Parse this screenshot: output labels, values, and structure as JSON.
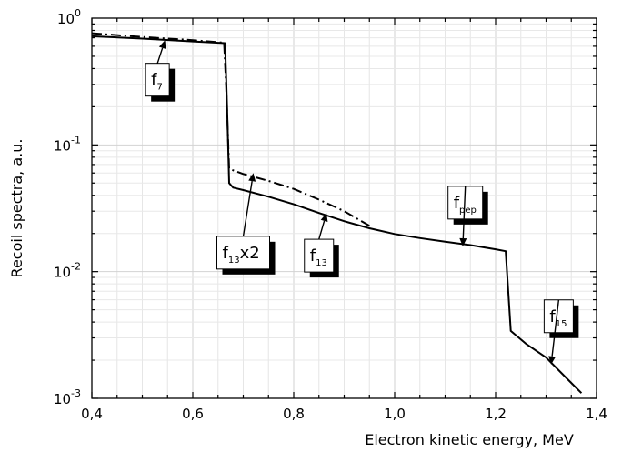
{
  "chart_data": {
    "type": "line",
    "xlabel": "Electron kinetic energy, MeV",
    "ylabel": "Recoil spectra, a.u.",
    "xlim": [
      0.4,
      1.4
    ],
    "ylim": [
      0.001,
      1
    ],
    "yscale": "log",
    "grid": true,
    "x_ticks": [
      "0,4",
      "0,6",
      "0,8",
      "1,0",
      "1,2",
      "1,4"
    ],
    "y_ticks": [
      {
        "base": "10",
        "exp": "-3"
      },
      {
        "base": "10",
        "exp": "-2"
      },
      {
        "base": "10",
        "exp": "-1"
      },
      {
        "base": "10",
        "exp": "0"
      }
    ],
    "series": [
      {
        "style": "solid",
        "x": [
          0.4,
          0.5,
          0.6,
          0.664,
          0.668,
          0.672,
          0.68,
          0.7,
          0.75,
          0.8,
          0.85,
          0.9,
          0.95,
          1.0,
          1.05,
          1.1,
          1.15,
          1.2,
          1.22,
          1.23,
          1.26,
          1.3,
          1.34,
          1.37
        ],
        "y": [
          0.72,
          0.69,
          0.655,
          0.635,
          0.2,
          0.05,
          0.046,
          0.044,
          0.039,
          0.034,
          0.029,
          0.025,
          0.022,
          0.0198,
          0.0184,
          0.0172,
          0.0162,
          0.015,
          0.0145,
          0.0034,
          0.0027,
          0.0021,
          0.00145,
          0.0011
        ]
      },
      {
        "style": "dashdot",
        "x": [
          0.4,
          0.5,
          0.6,
          0.662,
          0.666,
          0.672,
          0.68,
          0.7,
          0.75,
          0.8,
          0.85,
          0.9,
          0.95
        ],
        "y": [
          0.76,
          0.71,
          0.67,
          0.64,
          0.3,
          0.065,
          0.063,
          0.059,
          0.052,
          0.045,
          0.037,
          0.03,
          0.023
        ]
      }
    ],
    "annotations": [
      {
        "label": "f",
        "sub": "7",
        "tail": [
          0.53,
          0.44
        ],
        "head": [
          0.545,
          0.67
        ]
      },
      {
        "label": "f",
        "sub": "13",
        "suffix": "x2",
        "tail": [
          0.7,
          0.019
        ],
        "head": [
          0.72,
          0.06
        ]
      },
      {
        "label": "f",
        "sub": "13",
        "tail": [
          0.85,
          0.018
        ],
        "head": [
          0.865,
          0.029
        ]
      },
      {
        "label": "f",
        "sub": "pep",
        "tail": [
          1.14,
          0.026
        ],
        "head": [
          1.135,
          0.0158
        ]
      },
      {
        "label": "f",
        "sub": "15",
        "tail": [
          1.325,
          0.0033
        ],
        "head": [
          1.31,
          0.00185
        ]
      }
    ]
  }
}
